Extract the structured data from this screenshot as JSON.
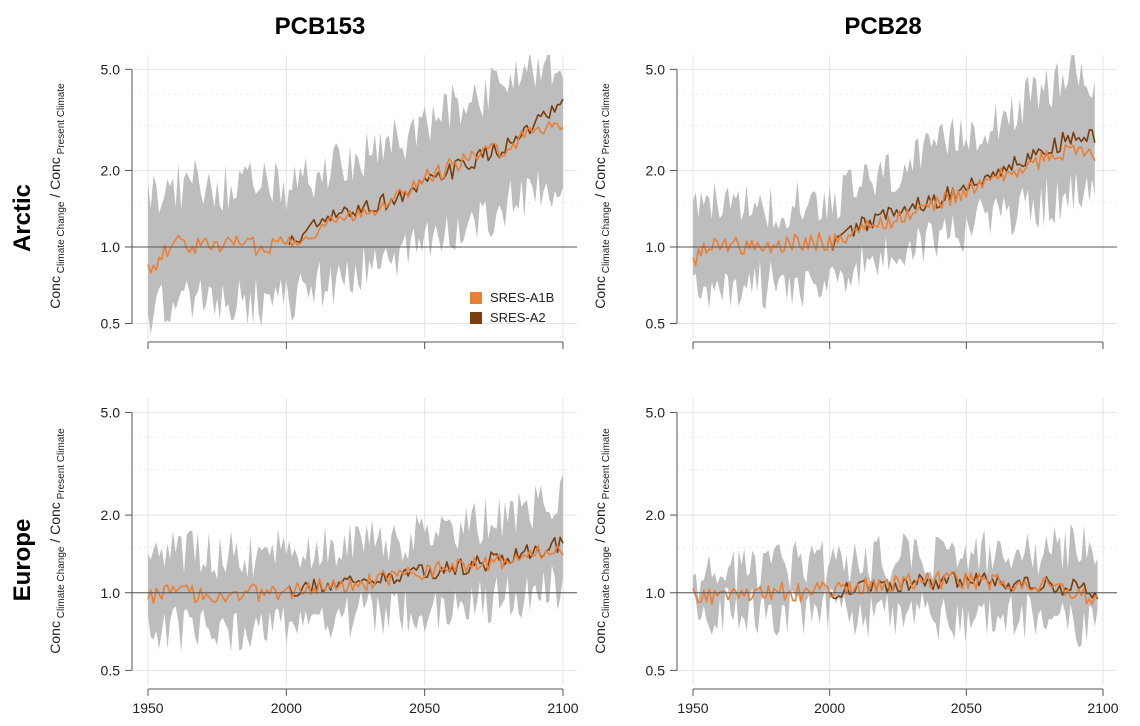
{
  "columns": [
    "PCB153",
    "PCB28"
  ],
  "rows": [
    "Arctic",
    "Europe"
  ],
  "ylabel": {
    "main1": "Conc",
    "sub1": "Climate Change",
    "slash": "/",
    "main2": "Conc",
    "sub2": "Present Climate"
  },
  "legend": [
    {
      "label": "SRES-A1B",
      "color": "#e8803a"
    },
    {
      "label": "SRES-A2",
      "color": "#7a3d0c"
    }
  ],
  "colors": {
    "band": "#bdbdbd",
    "a1b": "#e8803a",
    "a2": "#7a3d0c",
    "refline": "#555555",
    "grid": "#e4e4e4"
  },
  "chart_data": [
    {
      "type": "line",
      "panel": "PCB153 Arctic",
      "log_y": true,
      "yticks": [
        0.5,
        1.0,
        2.0,
        5.0
      ],
      "ytick_labels": [
        "0.5",
        "1.0",
        "2.0",
        "5.0"
      ],
      "xticks": [
        1950,
        2000,
        2050,
        2100
      ],
      "xtick_labels": [],
      "ylim": [
        0.48,
        5.2
      ],
      "xlim": [
        1950,
        2100
      ],
      "x": [
        1950,
        1960,
        1970,
        1980,
        1990,
        2000,
        2010,
        2020,
        2030,
        2040,
        2050,
        2060,
        2070,
        2080,
        2090,
        2100
      ],
      "series": [
        {
          "name": "SRES-A1B",
          "values": [
            0.8,
            1.05,
            1.0,
            1.05,
            1.0,
            1.05,
            1.15,
            1.3,
            1.4,
            1.6,
            1.85,
            2.1,
            2.3,
            2.5,
            2.9,
            3.1
          ]
        },
        {
          "name": "SRES-A2",
          "values": [
            null,
            null,
            null,
            null,
            null,
            1.0,
            1.2,
            1.35,
            1.45,
            1.55,
            1.75,
            2.0,
            2.25,
            2.5,
            3.0,
            3.6
          ]
        }
      ],
      "band_lower": [
        0.55,
        0.6,
        0.6,
        0.62,
        0.6,
        0.62,
        0.7,
        0.75,
        0.85,
        0.9,
        1.0,
        1.15,
        1.3,
        1.45,
        1.6,
        1.8
      ],
      "band_upper": [
        1.6,
        1.7,
        1.8,
        1.7,
        1.75,
        1.7,
        1.9,
        2.1,
        2.3,
        2.6,
        3.0,
        3.5,
        4.0,
        4.6,
        5.2,
        5.2
      ]
    },
    {
      "type": "line",
      "panel": "PCB28 Arctic",
      "log_y": true,
      "yticks": [
        0.5,
        1.0,
        2.0,
        5.0
      ],
      "ytick_labels": [
        "0.5",
        "1.0",
        "2.0",
        "5.0"
      ],
      "xticks": [
        1950,
        2000,
        2050,
        2100
      ],
      "xtick_labels": [],
      "ylim": [
        0.48,
        5.2
      ],
      "xlim": [
        1950,
        2100
      ],
      "x": [
        1950,
        1960,
        1970,
        1980,
        1990,
        2000,
        2010,
        2020,
        2030,
        2040,
        2050,
        2060,
        2070,
        2080,
        2090,
        2097
      ],
      "series": [
        {
          "name": "SRES-A1B",
          "values": [
            0.9,
            1.05,
            1.0,
            1.0,
            1.05,
            1.05,
            1.15,
            1.25,
            1.35,
            1.5,
            1.65,
            1.85,
            2.0,
            2.25,
            2.5,
            2.2
          ]
        },
        {
          "name": "SRES-A2",
          "values": [
            null,
            null,
            null,
            null,
            null,
            1.0,
            1.2,
            1.35,
            1.45,
            1.55,
            1.7,
            1.95,
            2.2,
            2.4,
            2.8,
            2.7
          ]
        }
      ],
      "band_lower": [
        0.72,
        0.7,
        0.72,
        0.7,
        0.72,
        0.75,
        0.85,
        0.9,
        1.0,
        1.1,
        1.2,
        1.3,
        1.4,
        1.5,
        1.6,
        1.5
      ],
      "band_upper": [
        1.4,
        1.45,
        1.45,
        1.45,
        1.5,
        1.55,
        1.7,
        1.9,
        2.1,
        2.4,
        2.8,
        3.2,
        3.6,
        4.2,
        5.0,
        4.5
      ]
    },
    {
      "type": "line",
      "panel": "PCB153 Europe",
      "log_y": true,
      "yticks": [
        0.5,
        1.0,
        2.0,
        5.0
      ],
      "ytick_labels": [
        "0.5",
        "1.0",
        "2.0",
        "5.0"
      ],
      "xticks": [
        1950,
        2000,
        2050,
        2100
      ],
      "xtick_labels": [
        "1950",
        "2000",
        "2050",
        "2100"
      ],
      "ylim": [
        0.48,
        5.2
      ],
      "xlim": [
        1950,
        2100
      ],
      "x": [
        1950,
        1960,
        1970,
        1980,
        1990,
        2000,
        2010,
        2020,
        2030,
        2040,
        2050,
        2060,
        2070,
        2080,
        2090,
        2100
      ],
      "series": [
        {
          "name": "SRES-A1B",
          "values": [
            0.98,
            1.0,
            0.98,
            1.0,
            1.0,
            1.02,
            1.05,
            1.08,
            1.1,
            1.15,
            1.2,
            1.25,
            1.3,
            1.35,
            1.45,
            1.5
          ]
        },
        {
          "name": "SRES-A2",
          "values": [
            null,
            null,
            null,
            null,
            null,
            1.0,
            1.06,
            1.1,
            1.12,
            1.16,
            1.2,
            1.25,
            1.3,
            1.38,
            1.48,
            1.55
          ]
        }
      ],
      "band_lower": [
        0.72,
        0.72,
        0.72,
        0.72,
        0.72,
        0.75,
        0.78,
        0.8,
        0.82,
        0.85,
        0.88,
        0.9,
        0.92,
        0.95,
        1.0,
        1.05
      ],
      "band_upper": [
        1.35,
        1.4,
        1.4,
        1.4,
        1.42,
        1.45,
        1.5,
        1.55,
        1.6,
        1.65,
        1.7,
        1.8,
        1.9,
        2.0,
        2.2,
        2.3
      ]
    },
    {
      "type": "line",
      "panel": "PCB28 Europe",
      "log_y": true,
      "yticks": [
        0.5,
        1.0,
        2.0,
        5.0
      ],
      "ytick_labels": [
        "0.5",
        "1.0",
        "2.0",
        "5.0"
      ],
      "xticks": [
        1950,
        2000,
        2050,
        2100
      ],
      "xtick_labels": [
        "1950",
        "2000",
        "2050",
        "2100"
      ],
      "ylim": [
        0.48,
        5.2
      ],
      "xlim": [
        1950,
        2100
      ],
      "x": [
        1950,
        1960,
        1970,
        1980,
        1990,
        2000,
        2010,
        2020,
        2030,
        2040,
        2050,
        2060,
        2070,
        2080,
        2090,
        2098
      ],
      "series": [
        {
          "name": "SRES-A1B",
          "values": [
            0.97,
            0.97,
            1.0,
            1.02,
            1.0,
            1.02,
            1.05,
            1.08,
            1.1,
            1.12,
            1.12,
            1.1,
            1.08,
            1.05,
            1.0,
            0.93
          ]
        },
        {
          "name": "SRES-A2",
          "values": [
            null,
            null,
            null,
            null,
            null,
            1.0,
            1.03,
            1.06,
            1.1,
            1.12,
            1.12,
            1.1,
            1.08,
            1.07,
            1.05,
            1.0
          ]
        }
      ],
      "band_lower": [
        0.85,
        0.85,
        0.84,
        0.84,
        0.83,
        0.83,
        0.82,
        0.82,
        0.82,
        0.82,
        0.8,
        0.8,
        0.8,
        0.78,
        0.75,
        0.7
      ],
      "band_upper": [
        1.15,
        1.18,
        1.2,
        1.25,
        1.3,
        1.3,
        1.32,
        1.35,
        1.38,
        1.4,
        1.42,
        1.42,
        1.45,
        1.45,
        1.5,
        1.5
      ]
    }
  ]
}
